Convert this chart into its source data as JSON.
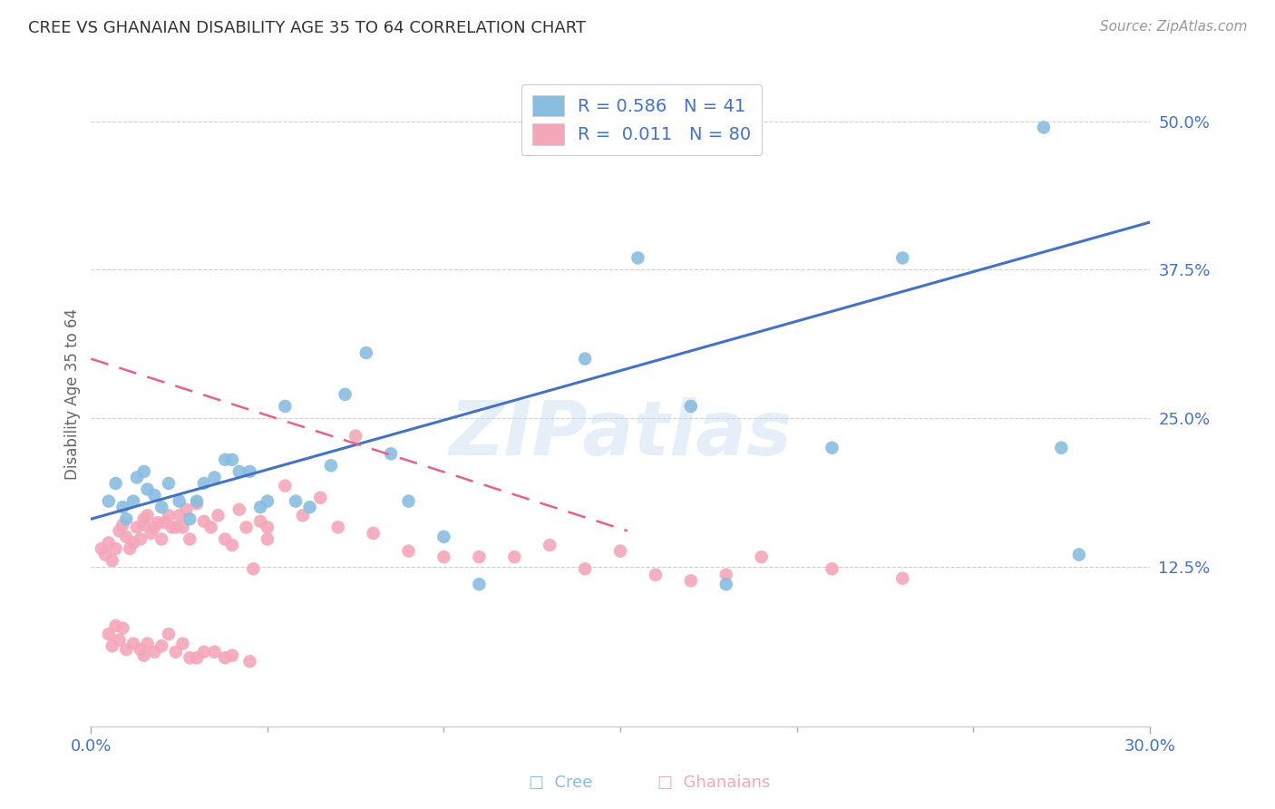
{
  "title": "CREE VS GHANAIAN DISABILITY AGE 35 TO 64 CORRELATION CHART",
  "source": "Source: ZipAtlas.com",
  "ylabel": "Disability Age 35 to 64",
  "xlim": [
    0.0,
    0.3
  ],
  "ylim": [
    -0.01,
    0.55
  ],
  "xticks": [
    0.0,
    0.3
  ],
  "xticklabels": [
    "0.0%",
    "30.0%"
  ],
  "ytick_positions": [
    0.125,
    0.25,
    0.375,
    0.5
  ],
  "ytick_labels": [
    "12.5%",
    "25.0%",
    "37.5%",
    "50.0%"
  ],
  "grid_color": "#cccccc",
  "background_color": "#ffffff",
  "cree_color": "#89bde0",
  "ghanaian_color": "#f4a7b9",
  "cree_line_color": "#4472c4",
  "ghanaian_line_color": "#e8608a",
  "cree_R": 0.586,
  "cree_N": 41,
  "ghanaian_R": 0.011,
  "ghanaian_N": 80,
  "watermark": "ZIPatlas",
  "cree_points_x": [
    0.005,
    0.007,
    0.009,
    0.01,
    0.012,
    0.013,
    0.015,
    0.016,
    0.018,
    0.02,
    0.022,
    0.025,
    0.028,
    0.03,
    0.032,
    0.035,
    0.038,
    0.04,
    0.042,
    0.045,
    0.048,
    0.05,
    0.055,
    0.058,
    0.062,
    0.068,
    0.072,
    0.078,
    0.085,
    0.09,
    0.1,
    0.11,
    0.14,
    0.155,
    0.17,
    0.18,
    0.21,
    0.23,
    0.27,
    0.275,
    0.28
  ],
  "cree_points_y": [
    0.18,
    0.195,
    0.175,
    0.165,
    0.18,
    0.2,
    0.205,
    0.19,
    0.185,
    0.175,
    0.195,
    0.18,
    0.165,
    0.18,
    0.195,
    0.2,
    0.215,
    0.215,
    0.205,
    0.205,
    0.175,
    0.18,
    0.26,
    0.18,
    0.175,
    0.21,
    0.27,
    0.305,
    0.22,
    0.18,
    0.15,
    0.11,
    0.3,
    0.385,
    0.26,
    0.11,
    0.225,
    0.385,
    0.495,
    0.225,
    0.135
  ],
  "ghanaian_points_x": [
    0.003,
    0.004,
    0.005,
    0.006,
    0.007,
    0.008,
    0.009,
    0.01,
    0.011,
    0.012,
    0.013,
    0.014,
    0.015,
    0.015,
    0.016,
    0.017,
    0.018,
    0.019,
    0.02,
    0.021,
    0.022,
    0.023,
    0.024,
    0.025,
    0.026,
    0.027,
    0.028,
    0.03,
    0.032,
    0.034,
    0.036,
    0.038,
    0.04,
    0.042,
    0.044,
    0.046,
    0.048,
    0.05,
    0.005,
    0.006,
    0.007,
    0.008,
    0.009,
    0.01,
    0.012,
    0.014,
    0.015,
    0.016,
    0.018,
    0.02,
    0.022,
    0.024,
    0.026,
    0.028,
    0.03,
    0.032,
    0.035,
    0.038,
    0.04,
    0.045,
    0.05,
    0.055,
    0.06,
    0.065,
    0.07,
    0.075,
    0.08,
    0.09,
    0.1,
    0.11,
    0.12,
    0.13,
    0.14,
    0.15,
    0.16,
    0.17,
    0.18,
    0.19,
    0.21,
    0.23
  ],
  "ghanaian_points_y": [
    0.14,
    0.135,
    0.145,
    0.13,
    0.14,
    0.155,
    0.16,
    0.15,
    0.14,
    0.145,
    0.158,
    0.148,
    0.165,
    0.16,
    0.168,
    0.153,
    0.158,
    0.162,
    0.148,
    0.162,
    0.168,
    0.158,
    0.158,
    0.168,
    0.158,
    0.173,
    0.148,
    0.178,
    0.163,
    0.158,
    0.168,
    0.148,
    0.143,
    0.173,
    0.158,
    0.123,
    0.163,
    0.158,
    0.068,
    0.058,
    0.075,
    0.063,
    0.073,
    0.055,
    0.06,
    0.055,
    0.05,
    0.06,
    0.053,
    0.058,
    0.068,
    0.053,
    0.06,
    0.048,
    0.048,
    0.053,
    0.053,
    0.048,
    0.05,
    0.045,
    0.148,
    0.193,
    0.168,
    0.183,
    0.158,
    0.235,
    0.153,
    0.138,
    0.133,
    0.133,
    0.133,
    0.143,
    0.123,
    0.138,
    0.118,
    0.113,
    0.118,
    0.133,
    0.123,
    0.115
  ]
}
